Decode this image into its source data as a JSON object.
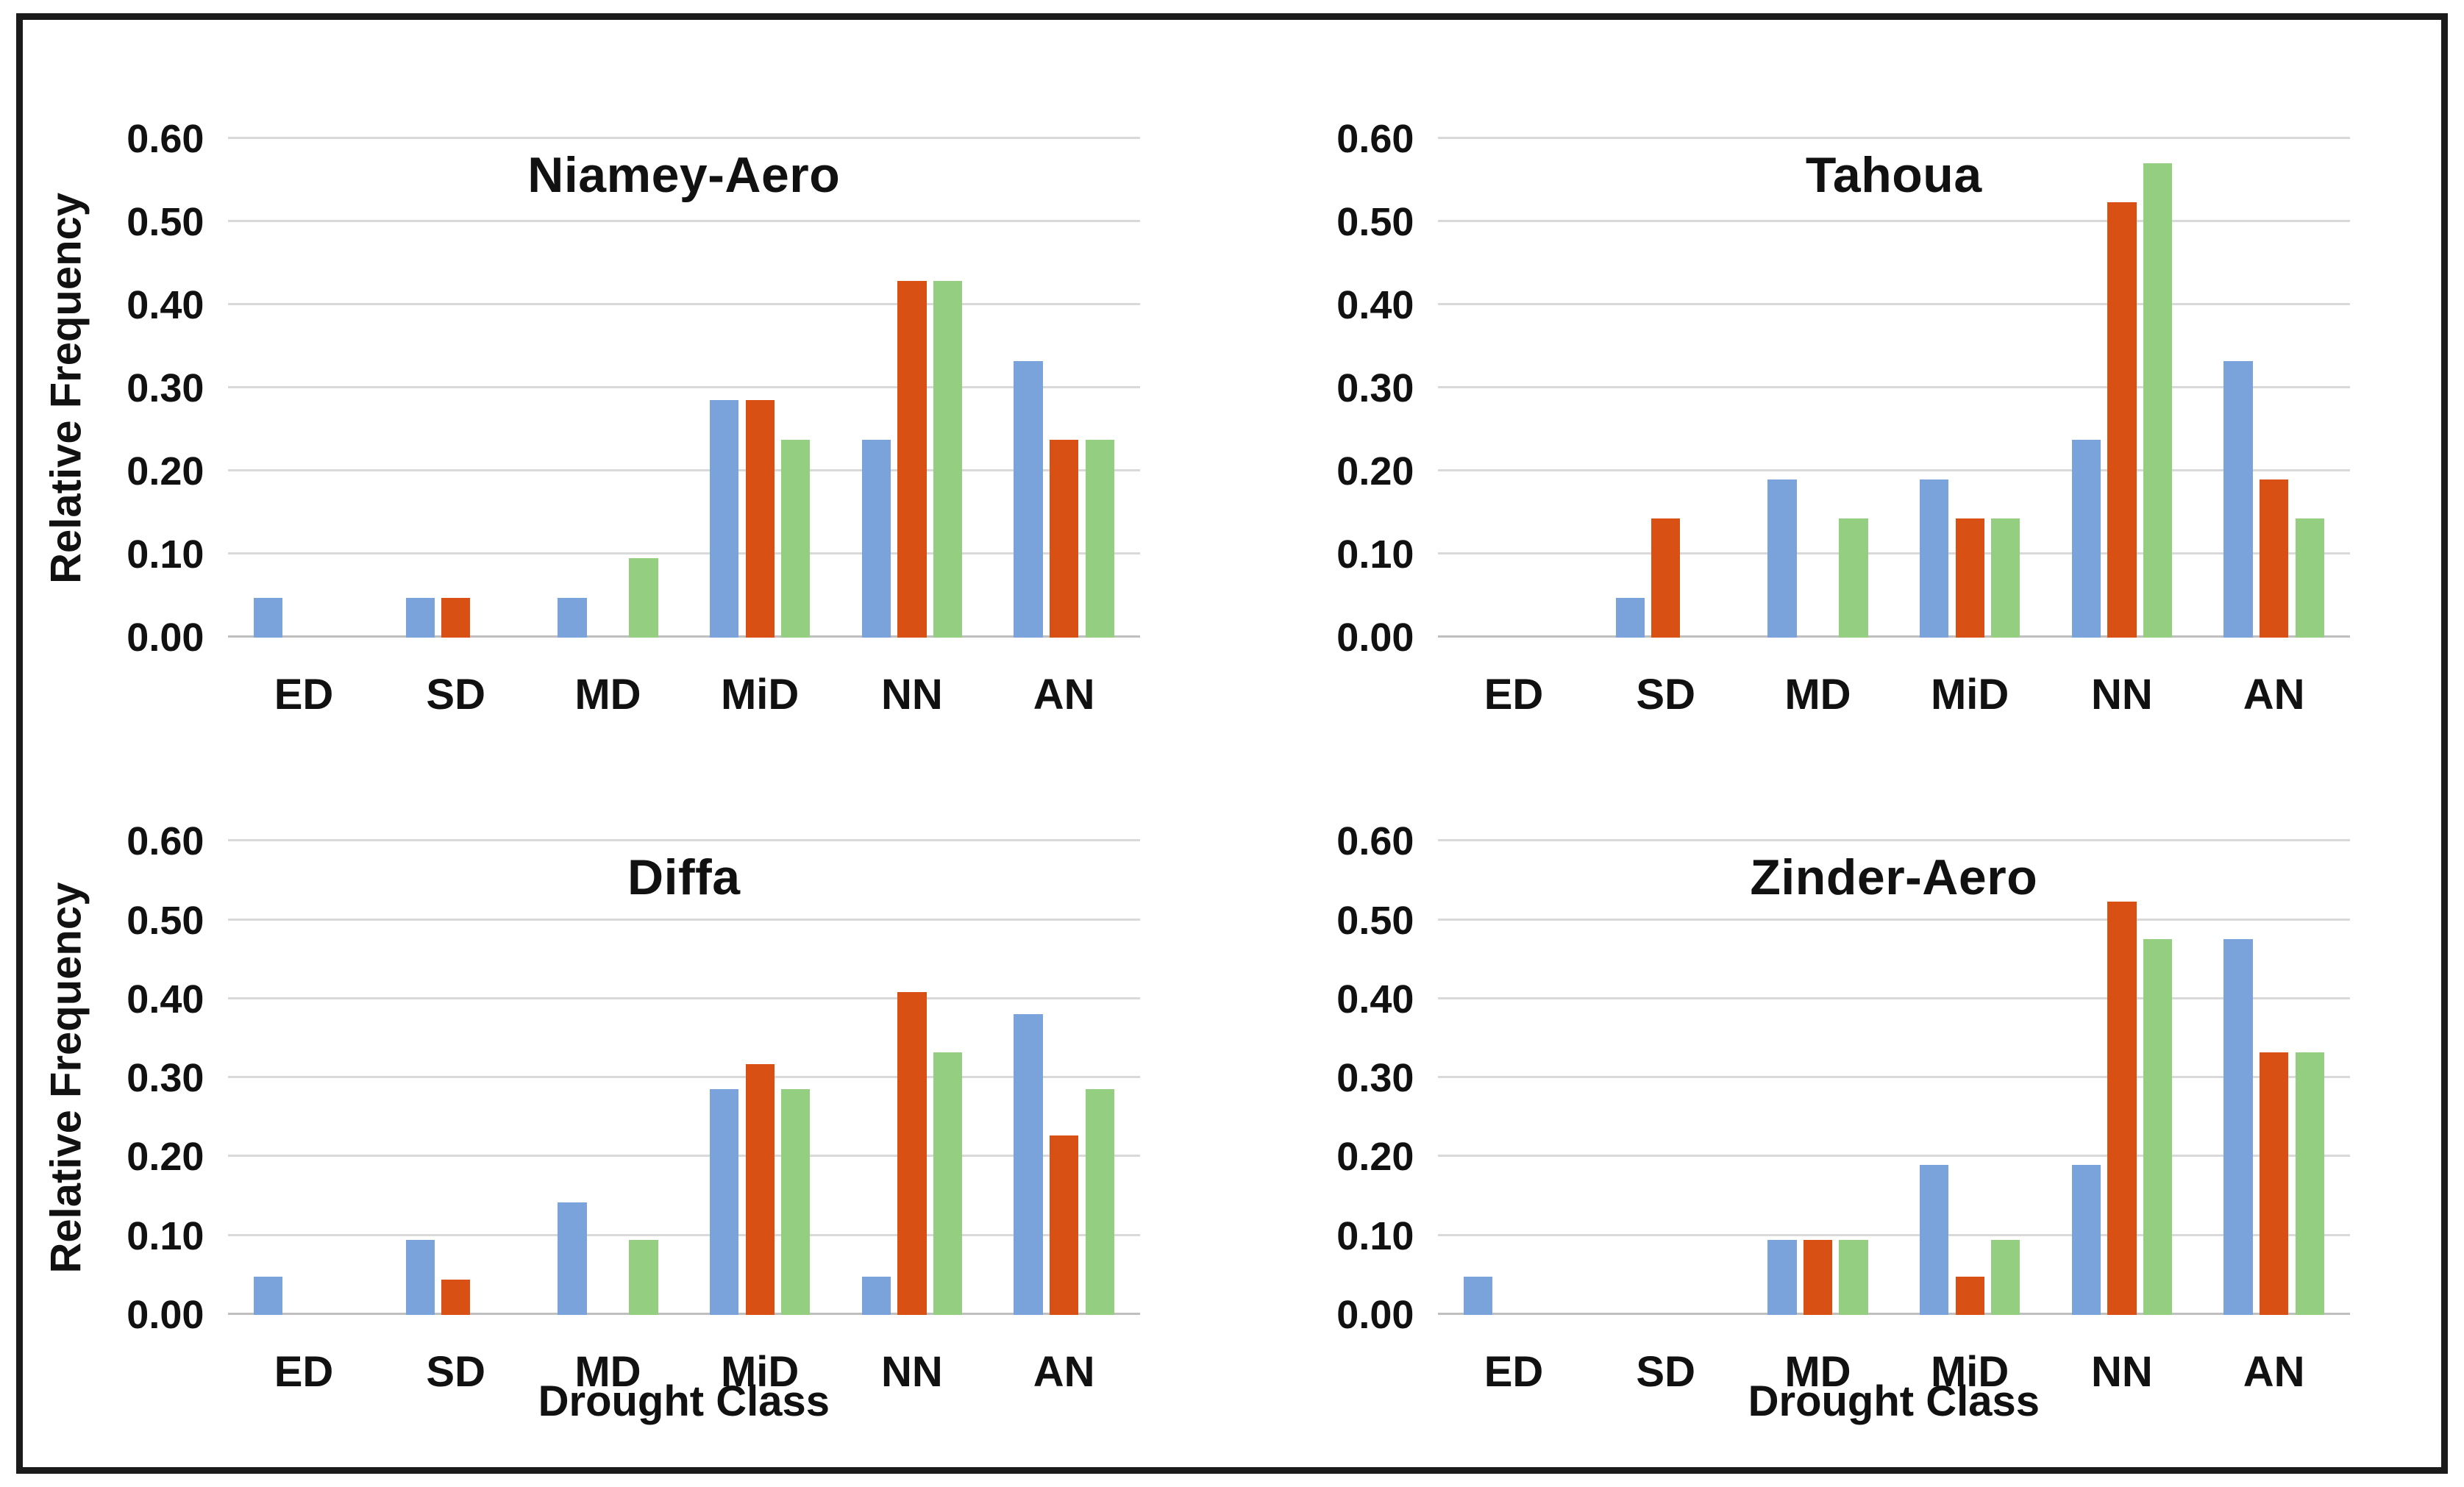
{
  "figure": {
    "background": "#ffffff",
    "border_color": "#1b1b1b",
    "layout": "2x2 grid of bar charts"
  },
  "colors": {
    "series_blue": "#7AA3DB",
    "series_orange": "#D95014",
    "series_green": "#94CE80",
    "gridline": "#D9D9D9",
    "axis_line": "#BFBFBF",
    "text": "#111111"
  },
  "chart_data": [
    {
      "type": "bar",
      "title": "Niamey-Aero",
      "ylabel": "Relative Frequency",
      "xlabel": "",
      "ylim": [
        0,
        0.6
      ],
      "grid": true,
      "legend": "none",
      "y_ticks": [
        "0.60",
        "0.50",
        "0.40",
        "0.30",
        "0.20",
        "0.10",
        "0.00"
      ],
      "categories": [
        "ED",
        "SD",
        "MD",
        "MiD",
        "NN",
        "AN"
      ],
      "series": [
        {
          "name": "blue",
          "color": "#7AA3DB",
          "values": [
            0.048,
            0.048,
            0.048,
            0.286,
            0.238,
            0.333
          ]
        },
        {
          "name": "orange",
          "color": "#D95014",
          "values": [
            0,
            0.048,
            0,
            0.286,
            0.429,
            0.238
          ]
        },
        {
          "name": "green",
          "color": "#94CE80",
          "values": [
            0,
            0,
            0.095,
            0.238,
            0.429,
            0.238
          ]
        }
      ]
    },
    {
      "type": "bar",
      "title": "Tahoua",
      "ylabel": "",
      "xlabel": "",
      "ylim": [
        0,
        0.6
      ],
      "grid": true,
      "legend": "none",
      "y_ticks": [
        "0.60",
        "0.50",
        "0.40",
        "0.30",
        "0.20",
        "0.10",
        "0.00"
      ],
      "categories": [
        "ED",
        "SD",
        "MD",
        "MiD",
        "NN",
        "AN"
      ],
      "series": [
        {
          "name": "blue",
          "color": "#7AA3DB",
          "values": [
            0,
            0.048,
            0.19,
            0.19,
            0.238,
            0.333
          ]
        },
        {
          "name": "orange",
          "color": "#D95014",
          "values": [
            0,
            0.143,
            0,
            0.143,
            0.524,
            0.19
          ]
        },
        {
          "name": "green",
          "color": "#94CE80",
          "values": [
            0,
            0,
            0.143,
            0.143,
            0.571,
            0.143
          ]
        }
      ]
    },
    {
      "type": "bar",
      "title": "Diffa",
      "ylabel": "Relative Frequency",
      "xlabel": "Drought Class",
      "ylim": [
        0,
        0.6
      ],
      "grid": true,
      "legend": "none",
      "y_ticks": [
        "0.60",
        "0.50",
        "0.40",
        "0.30",
        "0.20",
        "0.10",
        "0.00"
      ],
      "categories": [
        "ED",
        "SD",
        "MD",
        "MiD",
        "NN",
        "AN"
      ],
      "series": [
        {
          "name": "blue",
          "color": "#7AA3DB",
          "values": [
            0.048,
            0.095,
            0.143,
            0.286,
            0.048,
            0.381
          ]
        },
        {
          "name": "orange",
          "color": "#D95014",
          "values": [
            0,
            0.045,
            0,
            0.318,
            0.409,
            0.227
          ]
        },
        {
          "name": "green",
          "color": "#94CE80",
          "values": [
            0,
            0,
            0.095,
            0.286,
            0.333,
            0.286
          ]
        }
      ]
    },
    {
      "type": "bar",
      "title": "Zinder-Aero",
      "ylabel": "",
      "xlabel": "Drought Class",
      "ylim": [
        0,
        0.6
      ],
      "grid": true,
      "legend": "none",
      "y_ticks": [
        "0.60",
        "0.50",
        "0.40",
        "0.30",
        "0.20",
        "0.10",
        "0.00"
      ],
      "categories": [
        "ED",
        "SD",
        "MD",
        "MiD",
        "NN",
        "AN"
      ],
      "series": [
        {
          "name": "blue",
          "color": "#7AA3DB",
          "values": [
            0.048,
            0,
            0.095,
            0.19,
            0.19,
            0.476
          ]
        },
        {
          "name": "orange",
          "color": "#D95014",
          "values": [
            0,
            0,
            0.095,
            0.048,
            0.524,
            0.333
          ]
        },
        {
          "name": "green",
          "color": "#94CE80",
          "values": [
            0,
            0,
            0.095,
            0.095,
            0.476,
            0.333
          ]
        }
      ]
    }
  ]
}
